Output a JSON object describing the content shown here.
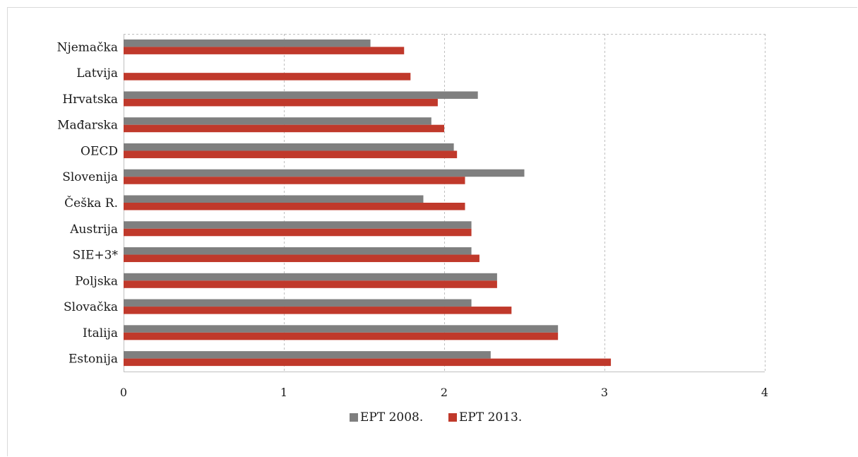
{
  "chart_data": {
    "type": "bar",
    "orientation": "horizontal",
    "categories": [
      "Njemačka",
      "Latvija",
      "Hrvatska",
      "Mađarska",
      "OECD",
      "Slovenija",
      "Češka R.",
      "Austrija",
      "SIE+3*",
      "Poljska",
      "Slovačka",
      "Italija",
      "Estonija"
    ],
    "series": [
      {
        "name": "EPT 2008.",
        "color": "#7f7f7f",
        "values": [
          1.54,
          null,
          2.21,
          1.92,
          2.06,
          2.5,
          1.87,
          2.17,
          2.17,
          2.33,
          2.17,
          2.71,
          2.29
        ]
      },
      {
        "name": "EPT 2013.",
        "color": "#c0392b",
        "values": [
          1.75,
          1.79,
          1.96,
          2.0,
          2.08,
          2.13,
          2.13,
          2.17,
          2.22,
          2.33,
          2.42,
          2.71,
          3.04
        ]
      }
    ],
    "xlim": [
      0,
      4
    ],
    "x_ticks": [
      "0",
      "1",
      "2",
      "3",
      "4"
    ],
    "grid": "vertical-dashed",
    "legend": "bottom-center",
    "title": "",
    "xlabel": "",
    "ylabel": ""
  }
}
